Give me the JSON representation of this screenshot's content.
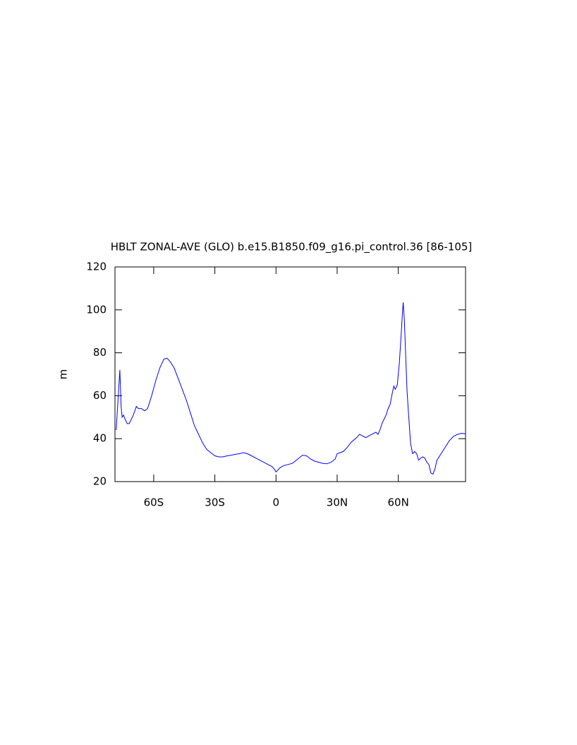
{
  "chart_data": {
    "type": "line",
    "title": "HBLT ZONAL-AVE (GLO) b.e15.B1850.f09_g16.pi_control.36 [86-105]",
    "y_label": "m",
    "xlim": [
      -79,
      93
    ],
    "ylim": [
      20,
      120
    ],
    "xticks": [
      {
        "value": -60,
        "label": "60S"
      },
      {
        "value": -30,
        "label": "30S"
      },
      0,
      {
        "value": 30,
        "label": "30N"
      },
      {
        "value": 60,
        "label": "60N"
      }
    ],
    "yticks": [
      20,
      40,
      60,
      80,
      100,
      120
    ],
    "series": [
      {
        "color": "#0000ff",
        "x": [
          -78.4,
          -77.5,
          -76.6,
          -76,
          -75.5,
          -74.8,
          -74,
          -73,
          -72,
          -70,
          -68.5,
          -67.5,
          -66,
          -64.5,
          -63,
          -61,
          -59,
          -57,
          -55,
          -53.5,
          -52,
          -50,
          -48,
          -46,
          -44,
          -42,
          -40,
          -38,
          -36,
          -34,
          -32,
          -30,
          -28,
          -26,
          -24,
          -22,
          -20,
          -18,
          -16,
          -14,
          -12,
          -10,
          -8,
          -6,
          -4,
          -2,
          -1,
          0,
          1,
          2,
          4,
          6,
          8,
          10,
          12,
          13,
          15,
          17,
          19,
          21,
          23,
          25,
          27,
          29,
          30,
          33,
          35,
          37,
          39,
          40,
          41,
          42,
          44,
          46,
          48,
          49,
          50,
          51,
          52,
          54,
          55,
          56,
          57,
          57.8,
          58.5,
          59.5,
          60.5,
          61.5,
          62,
          62.4,
          63,
          63.6,
          64.3,
          65,
          66,
          67,
          68,
          69,
          70,
          71,
          72,
          73,
          74,
          75,
          76,
          77,
          78,
          79,
          81,
          83,
          85,
          87,
          89,
          91,
          92.8
        ],
        "values": [
          44,
          58,
          72,
          55,
          50,
          51,
          49,
          47,
          47,
          51,
          55,
          54,
          54,
          53,
          54,
          60,
          67,
          73,
          77,
          77.5,
          76,
          73,
          68,
          63,
          58,
          52,
          46,
          42,
          38,
          35,
          33.5,
          32,
          31.5,
          31.5,
          32,
          32.3,
          32.7,
          33,
          33.5,
          33,
          32,
          31,
          30,
          29,
          28,
          27,
          26,
          24.5,
          25.5,
          26.5,
          27.5,
          28,
          28.5,
          30,
          31.5,
          32.3,
          32,
          30.5,
          29.5,
          29,
          28.5,
          28.3,
          29,
          30.5,
          33,
          34,
          36,
          38.5,
          40,
          41,
          42,
          41.5,
          40.5,
          41.5,
          42.5,
          43,
          42,
          44,
          47,
          51,
          54,
          56,
          61,
          64.5,
          63,
          65,
          75,
          90,
          98,
          103.5,
          95,
          80,
          62,
          52,
          38,
          33,
          34,
          33,
          30,
          31,
          31.5,
          31,
          29,
          28,
          24,
          23.5,
          26,
          30,
          33,
          36,
          39,
          41,
          42,
          42.5,
          42.3
        ]
      }
    ]
  }
}
